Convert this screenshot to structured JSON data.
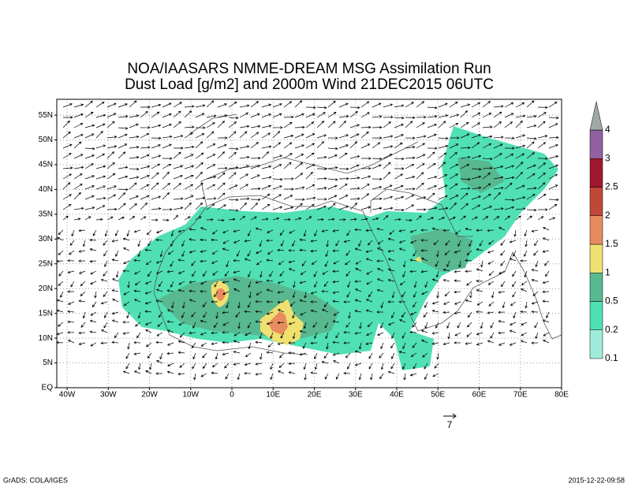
{
  "chart_data": {
    "type": "map",
    "title": "NOA/IAASARS NMME-DREAM MSG Assimilation Run",
    "subtitle": "Dust Load [g/m2] and 2000m Wind 21DEC2015 06UTC",
    "xlim": [
      -42.5,
      80
    ],
    "ylim": [
      0,
      58.2
    ],
    "xticks": [
      {
        "value": -40,
        "label": "40W"
      },
      {
        "value": -30,
        "label": "30W"
      },
      {
        "value": -20,
        "label": "20W"
      },
      {
        "value": -10,
        "label": "10W"
      },
      0,
      {
        "value": 10,
        "label": "10E"
      },
      {
        "value": 20,
        "label": "20E"
      },
      {
        "value": 30,
        "label": "30E"
      },
      {
        "value": 40,
        "label": "40E"
      },
      {
        "value": 50,
        "label": "50E"
      },
      {
        "value": 60,
        "label": "60E"
      },
      {
        "value": 70,
        "label": "70E"
      },
      {
        "value": 80,
        "label": "80E"
      }
    ],
    "yticks": [
      {
        "value": 0,
        "label": "EQ"
      },
      {
        "value": 5,
        "label": "5N"
      },
      {
        "value": 10,
        "label": "10N"
      },
      {
        "value": 15,
        "label": "15N"
      },
      {
        "value": 20,
        "label": "20N"
      },
      {
        "value": 25,
        "label": "25N"
      },
      {
        "value": 30,
        "label": "30N"
      },
      {
        "value": 35,
        "label": "35N"
      },
      {
        "value": 40,
        "label": "40N"
      },
      {
        "value": 45,
        "label": "45N"
      },
      {
        "value": 50,
        "label": "50N"
      },
      {
        "value": 55,
        "label": "55N"
      }
    ],
    "grid": true,
    "colorbar": {
      "levels": [
        0.1,
        0.2,
        0.5,
        1,
        1.5,
        2,
        2.5,
        3,
        4
      ],
      "colors": [
        "#a0ecdc",
        "#50e0b4",
        "#58b890",
        "#f0e070",
        "#e88c60",
        "#c04838",
        "#a01830",
        "#9060a0",
        "#a0a8a8"
      ]
    },
    "reference_vector": "7",
    "footer_left": "GrADS: COLA/IGES",
    "footer_right": "2015-12-22-09:58"
  }
}
